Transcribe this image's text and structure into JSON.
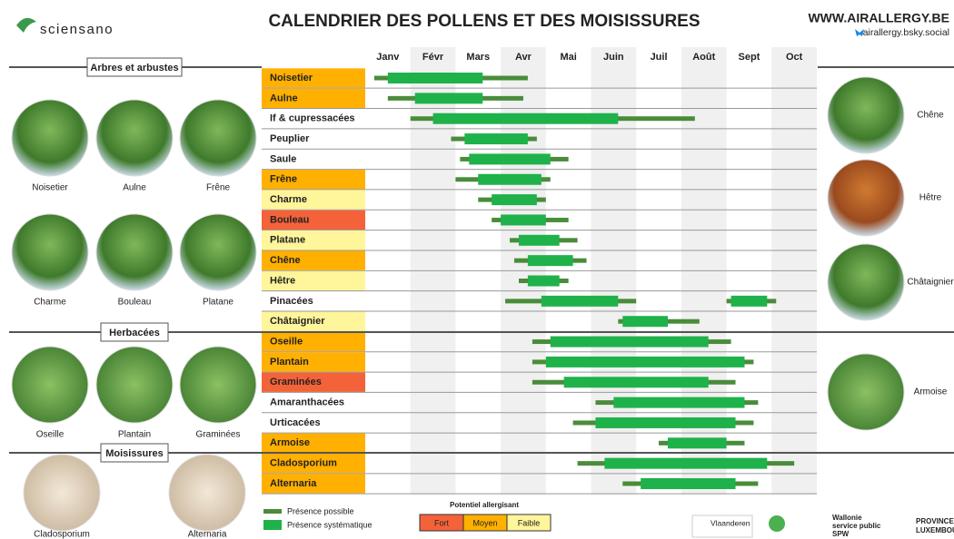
{
  "header": {
    "logo": "sciensano",
    "title": "CALENDRIER DES POLLENS ET DES MOISISSURES",
    "website": "WWW.AIRALLERGY.BE",
    "social": "airallergy.bsky.social"
  },
  "chart_data": {
    "type": "gantt",
    "categories": [
      "Janv",
      "Févr",
      "Mars",
      "Avr",
      "Mai",
      "Juin",
      "Juil",
      "Août",
      "Sept",
      "Oct"
    ],
    "xlim": [
      0,
      10
    ],
    "sections": [
      "Arbres et arbustes",
      "Herbacées",
      "Moisissures"
    ],
    "legend": {
      "possible": "Présence possible",
      "systematic": "Présence systématique",
      "possible_color": "#4a8c3a",
      "systematic_color": "#1fb24a"
    },
    "potentiel": {
      "title": "Potentiel allergisant",
      "levels": [
        {
          "label": "Fort",
          "color": "#f4623a"
        },
        {
          "label": "Moyen",
          "color": "#ffb000"
        },
        {
          "label": "Faible",
          "color": "#fff59a"
        }
      ]
    },
    "rows": [
      {
        "name": "Noisetier",
        "color": "#ffb000",
        "spans": [
          {
            "possible": [
              0.2,
              3.6
            ],
            "systematic": [
              0.5,
              2.6
            ]
          }
        ]
      },
      {
        "name": "Aulne",
        "color": "#ffb000",
        "spans": [
          {
            "possible": [
              0.5,
              3.5
            ],
            "systematic": [
              1.1,
              2.6
            ]
          }
        ]
      },
      {
        "name": "If & cupressacées",
        "color": null,
        "spans": [
          {
            "possible": [
              1.0,
              7.3
            ],
            "systematic": [
              1.5,
              5.6
            ]
          }
        ]
      },
      {
        "name": "Peuplier",
        "color": null,
        "spans": [
          {
            "possible": [
              1.9,
              3.8
            ],
            "systematic": [
              2.2,
              3.6
            ]
          }
        ]
      },
      {
        "name": "Saule",
        "color": null,
        "spans": [
          {
            "possible": [
              2.1,
              4.5
            ],
            "systematic": [
              2.3,
              4.1
            ]
          }
        ]
      },
      {
        "name": "Frêne",
        "color": "#ffb000",
        "spans": [
          {
            "possible": [
              2.0,
              4.1
            ],
            "systematic": [
              2.5,
              3.9
            ]
          }
        ]
      },
      {
        "name": "Charme",
        "color": "#fff59a",
        "spans": [
          {
            "possible": [
              2.5,
              4.0
            ],
            "systematic": [
              2.8,
              3.8
            ]
          }
        ]
      },
      {
        "name": "Bouleau",
        "color": "#f4623a",
        "spans": [
          {
            "possible": [
              2.8,
              4.5
            ],
            "systematic": [
              3.0,
              4.0
            ]
          }
        ]
      },
      {
        "name": "Platane",
        "color": "#fff59a",
        "spans": [
          {
            "possible": [
              3.2,
              4.7
            ],
            "systematic": [
              3.4,
              4.3
            ]
          }
        ]
      },
      {
        "name": "Chêne",
        "color": "#ffb000",
        "spans": [
          {
            "possible": [
              3.3,
              4.9
            ],
            "systematic": [
              3.6,
              4.6
            ]
          }
        ]
      },
      {
        "name": "Hêtre",
        "color": "#fff59a",
        "spans": [
          {
            "possible": [
              3.4,
              4.5
            ],
            "systematic": [
              3.6,
              4.3
            ]
          }
        ]
      },
      {
        "name": "Pinacées",
        "color": null,
        "spans": [
          {
            "possible": [
              3.1,
              6.0
            ],
            "systematic": [
              3.9,
              5.6
            ]
          },
          {
            "possible": [
              8.0,
              9.1
            ],
            "systematic": [
              8.1,
              8.9
            ]
          }
        ]
      },
      {
        "name": "Châtaignier",
        "color": "#fff59a",
        "spans": [
          {
            "possible": [
              5.6,
              7.4
            ],
            "systematic": [
              5.7,
              6.7
            ]
          }
        ]
      },
      {
        "name": "Oseille",
        "color": "#ffb000",
        "spans": [
          {
            "possible": [
              3.7,
              8.1
            ],
            "systematic": [
              4.1,
              7.6
            ]
          }
        ]
      },
      {
        "name": "Plantain",
        "color": "#ffb000",
        "spans": [
          {
            "possible": [
              3.7,
              8.6
            ],
            "systematic": [
              4.0,
              8.4
            ]
          }
        ]
      },
      {
        "name": "Graminées",
        "color": "#f4623a",
        "spans": [
          {
            "possible": [
              3.7,
              8.2
            ],
            "systematic": [
              4.4,
              7.6
            ]
          }
        ]
      },
      {
        "name": "Amaranthacées",
        "color": null,
        "spans": [
          {
            "possible": [
              5.1,
              8.7
            ],
            "systematic": [
              5.5,
              8.4
            ]
          }
        ]
      },
      {
        "name": "Urticacées",
        "color": null,
        "spans": [
          {
            "possible": [
              4.6,
              8.6
            ],
            "systematic": [
              5.1,
              8.2
            ]
          }
        ]
      },
      {
        "name": "Armoise",
        "color": "#ffb000",
        "spans": [
          {
            "possible": [
              6.5,
              8.4
            ],
            "systematic": [
              6.7,
              8.0
            ]
          }
        ]
      },
      {
        "name": "Cladosporium",
        "color": "#ffb000",
        "spans": [
          {
            "possible": [
              4.7,
              9.5
            ],
            "systematic": [
              5.3,
              8.9
            ]
          }
        ]
      },
      {
        "name": "Alternaria",
        "color": "#ffb000",
        "spans": [
          {
            "possible": [
              5.7,
              8.7
            ],
            "systematic": [
              6.1,
              8.2
            ]
          }
        ]
      }
    ]
  },
  "photos": [
    "Noisetier",
    "Aulne",
    "Frêne",
    "Charme",
    "Bouleau",
    "Platane",
    "Oseille",
    "Plantain",
    "Graminées",
    "Cladosporium",
    "Alternaria",
    "Chêne",
    "Hêtre",
    "Châtaignier",
    "Armoise"
  ],
  "logos": {
    "vlaanderen": "Vlaanderen",
    "wallonie": [
      "Wallonie",
      "service public",
      "SPW"
    ],
    "province": [
      "PROVINCE DE",
      "LUXEMBOURG"
    ]
  }
}
